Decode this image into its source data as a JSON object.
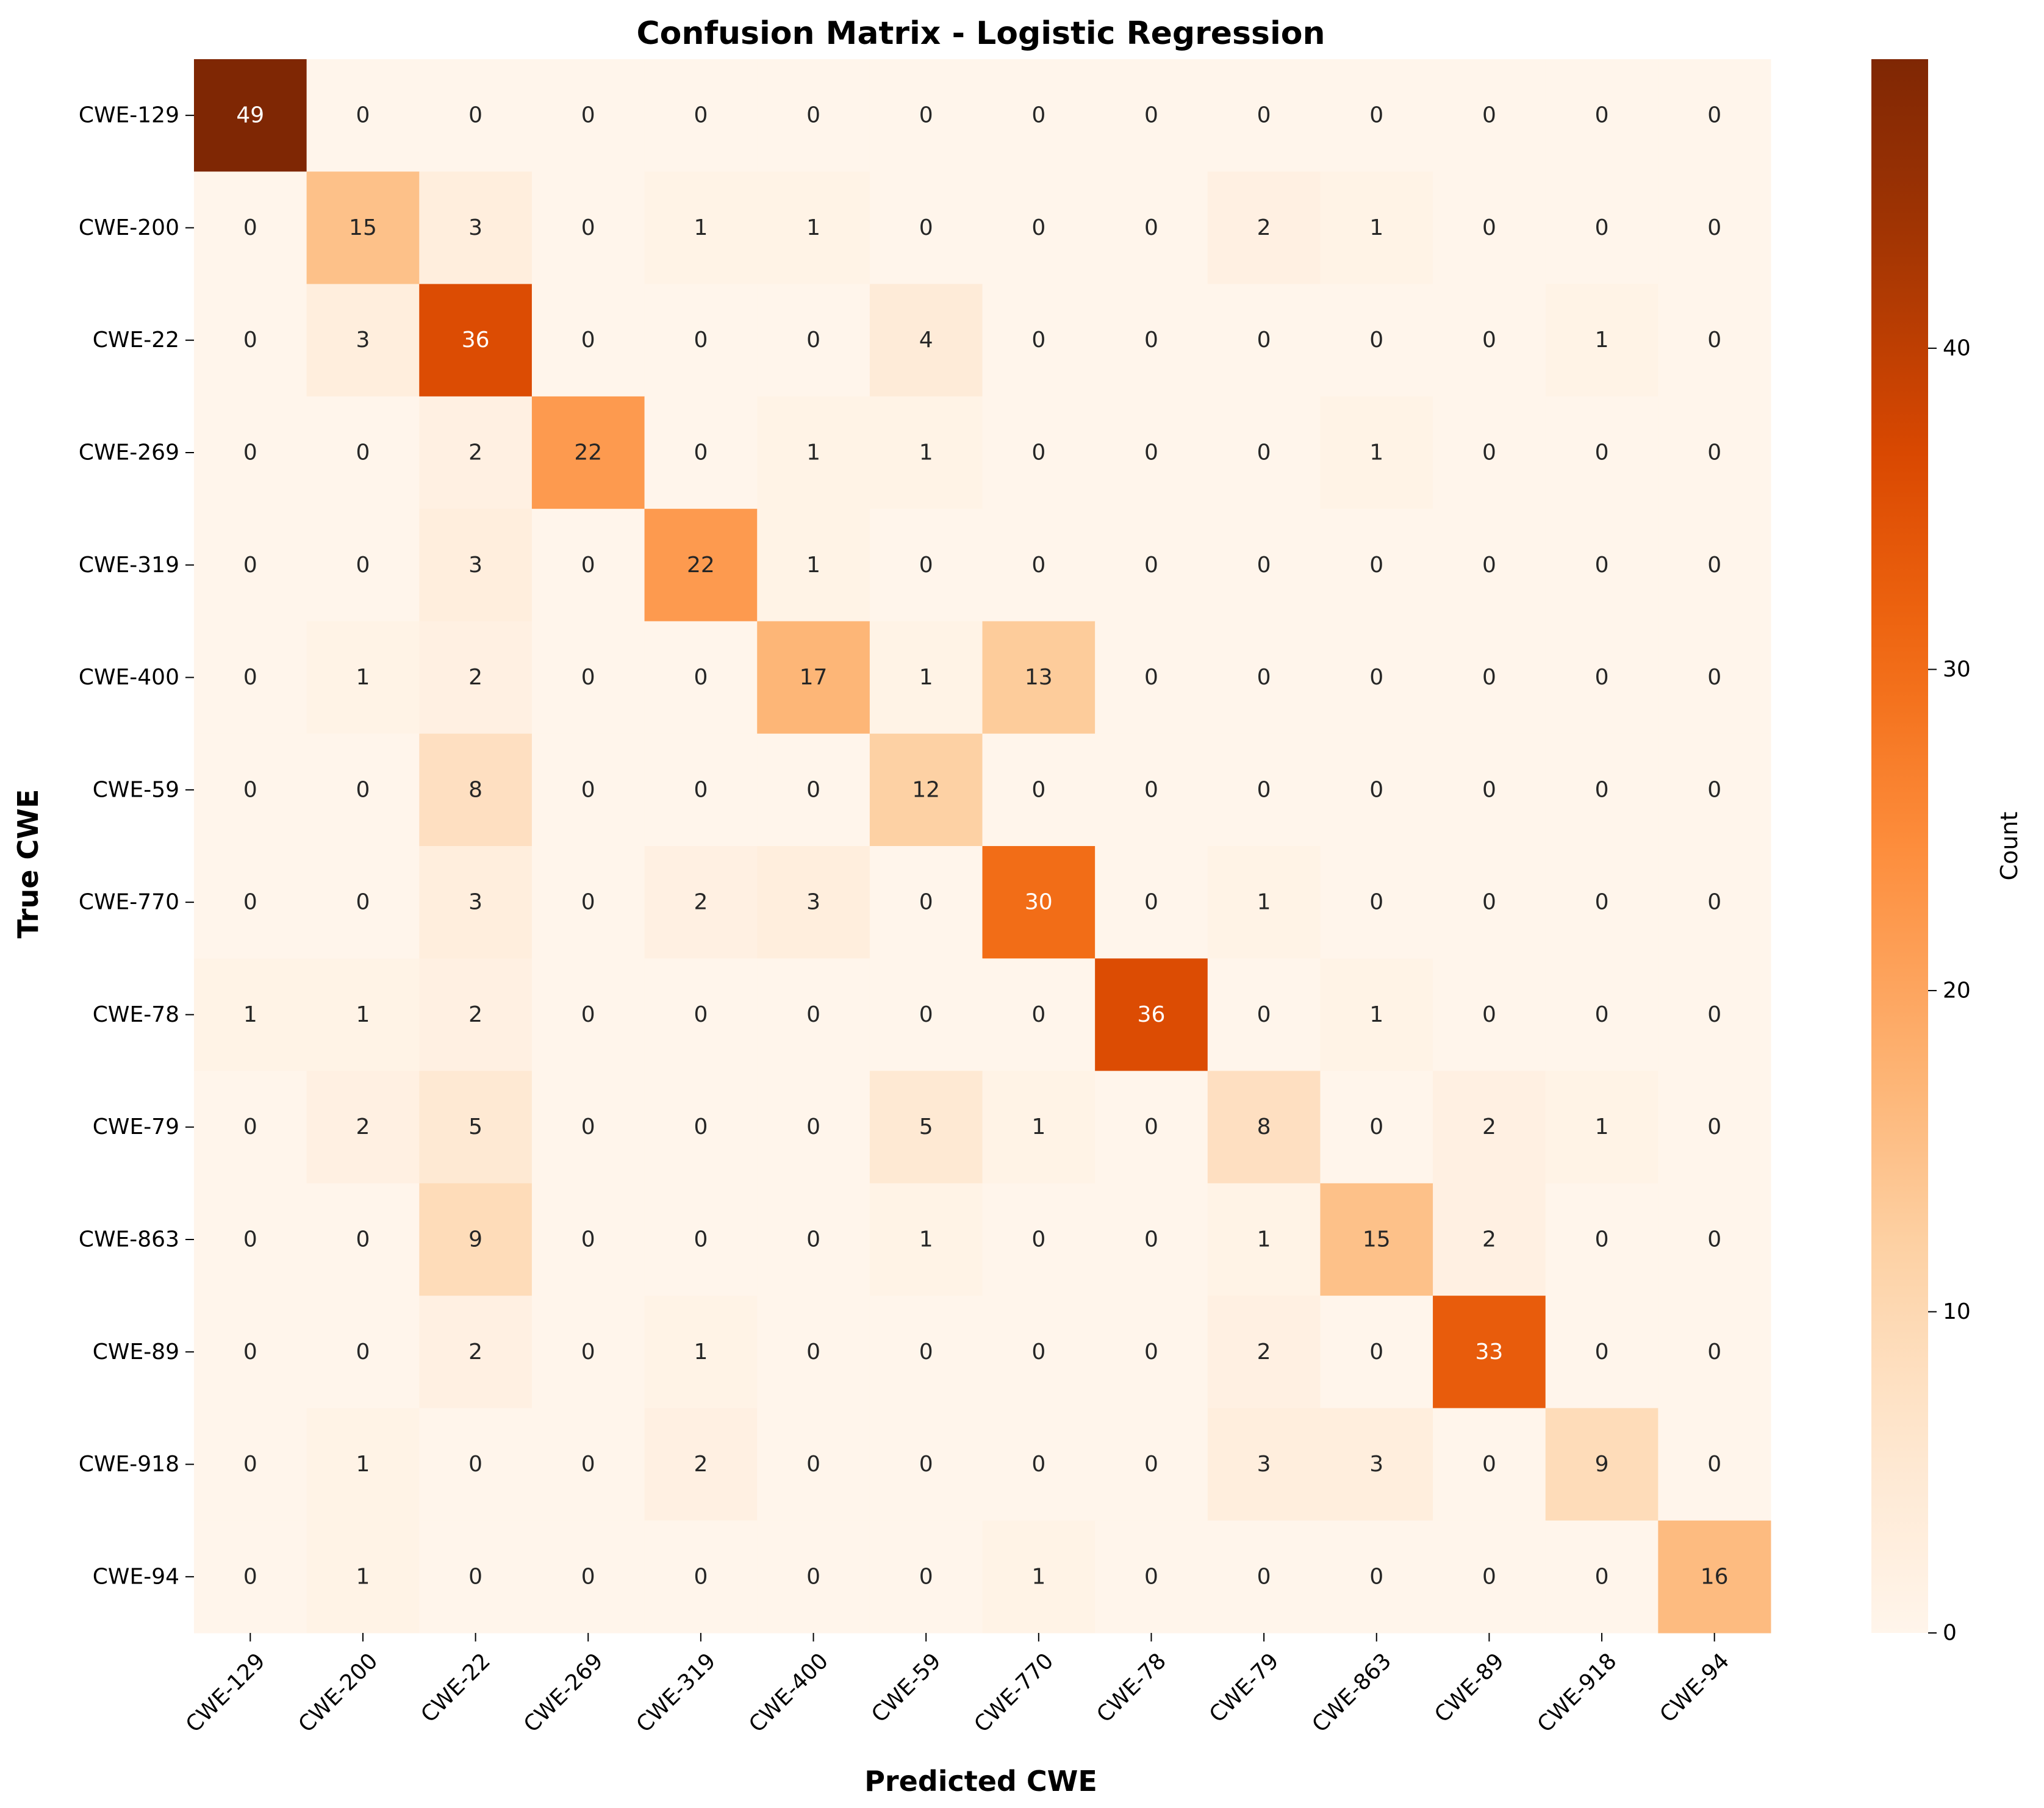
{
  "chart_data": {
    "type": "heatmap",
    "title": "Confusion Matrix - Logistic Regression",
    "xlabel": "Predicted CWE",
    "ylabel": "True CWE",
    "x_categories": [
      "CWE-129",
      "CWE-200",
      "CWE-22",
      "CWE-269",
      "CWE-319",
      "CWE-400",
      "CWE-59",
      "CWE-770",
      "CWE-78",
      "CWE-79",
      "CWE-863",
      "CWE-89",
      "CWE-918",
      "CWE-94"
    ],
    "y_categories": [
      "CWE-129",
      "CWE-200",
      "CWE-22",
      "CWE-269",
      "CWE-319",
      "CWE-400",
      "CWE-59",
      "CWE-770",
      "CWE-78",
      "CWE-79",
      "CWE-863",
      "CWE-89",
      "CWE-918",
      "CWE-94"
    ],
    "values": [
      [
        49,
        0,
        0,
        0,
        0,
        0,
        0,
        0,
        0,
        0,
        0,
        0,
        0,
        0
      ],
      [
        0,
        15,
        3,
        0,
        1,
        1,
        0,
        0,
        0,
        2,
        1,
        0,
        0,
        0
      ],
      [
        0,
        3,
        36,
        0,
        0,
        0,
        4,
        0,
        0,
        0,
        0,
        0,
        1,
        0
      ],
      [
        0,
        0,
        2,
        22,
        0,
        1,
        1,
        0,
        0,
        0,
        1,
        0,
        0,
        0
      ],
      [
        0,
        0,
        3,
        0,
        22,
        1,
        0,
        0,
        0,
        0,
        0,
        0,
        0,
        0
      ],
      [
        0,
        1,
        2,
        0,
        0,
        17,
        1,
        13,
        0,
        0,
        0,
        0,
        0,
        0
      ],
      [
        0,
        0,
        8,
        0,
        0,
        0,
        12,
        0,
        0,
        0,
        0,
        0,
        0,
        0
      ],
      [
        0,
        0,
        3,
        0,
        2,
        3,
        0,
        30,
        0,
        1,
        0,
        0,
        0,
        0
      ],
      [
        1,
        1,
        2,
        0,
        0,
        0,
        0,
        0,
        36,
        0,
        1,
        0,
        0,
        0
      ],
      [
        0,
        2,
        5,
        0,
        0,
        0,
        5,
        1,
        0,
        8,
        0,
        2,
        1,
        0
      ],
      [
        0,
        0,
        9,
        0,
        0,
        0,
        1,
        0,
        0,
        1,
        15,
        2,
        0,
        0
      ],
      [
        0,
        0,
        2,
        0,
        1,
        0,
        0,
        0,
        0,
        2,
        0,
        33,
        0,
        0
      ],
      [
        0,
        1,
        0,
        0,
        2,
        0,
        0,
        0,
        0,
        3,
        3,
        0,
        9,
        0
      ],
      [
        0,
        1,
        0,
        0,
        0,
        0,
        0,
        1,
        0,
        0,
        0,
        0,
        0,
        16
      ]
    ],
    "colormap": "Oranges",
    "vmin": 0,
    "vmax": 49,
    "colorbar": {
      "label": "Count",
      "ticks": [
        0,
        10,
        20,
        30,
        40
      ],
      "tick_labels": [
        "0",
        "10",
        "20",
        "30",
        "40"
      ]
    },
    "grid": false,
    "annotations": true
  }
}
